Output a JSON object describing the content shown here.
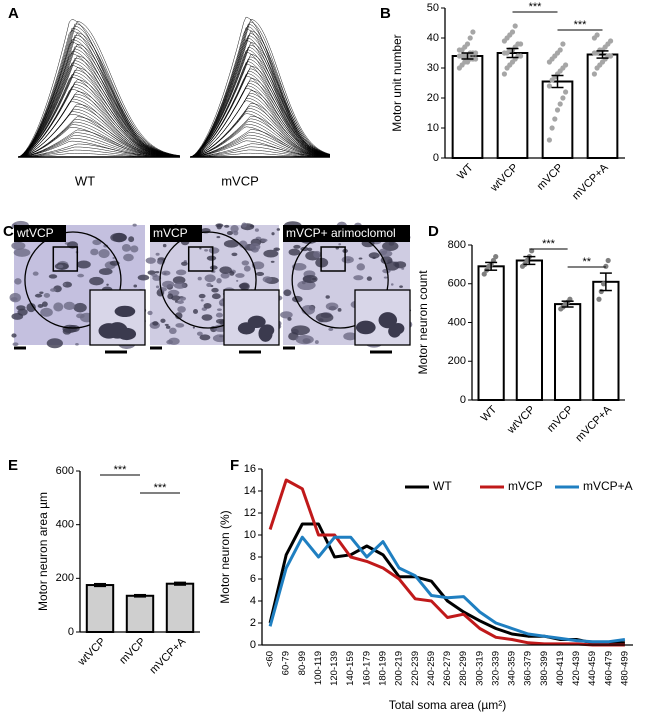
{
  "panels": [
    "A",
    "B",
    "C",
    "D",
    "E",
    "F"
  ],
  "traces": {
    "labels": [
      "WT",
      "mVCP"
    ]
  },
  "micrographs": {
    "labels": [
      "wtVCP",
      "mVCP",
      "mVCP+ arimoclomol"
    ]
  },
  "chart_data": [
    {
      "type": "bar",
      "ylabel": "Motor unit number",
      "categories": [
        "WT",
        "wtVCP",
        "mVCP",
        "mVCP+A"
      ],
      "values": [
        34,
        35,
        25.5,
        34.5
      ],
      "errors": [
        1,
        1.5,
        2,
        1.2
      ],
      "points": [
        [
          30,
          31,
          32,
          32,
          33,
          33,
          33,
          34,
          34,
          34,
          34,
          35,
          35,
          35,
          36,
          36,
          37,
          38,
          40,
          42
        ],
        [
          28,
          30,
          31,
          32,
          33,
          34,
          34,
          35,
          35,
          36,
          36,
          37,
          38,
          38,
          39,
          40,
          41,
          42,
          44
        ],
        [
          6,
          10,
          13,
          16,
          18,
          20,
          22,
          24,
          26,
          27,
          28,
          29,
          30,
          31,
          32,
          33,
          34,
          35,
          36,
          38
        ],
        [
          28,
          30,
          31,
          32,
          33,
          34,
          34,
          35,
          35,
          36,
          36,
          37,
          38,
          39,
          40,
          41
        ]
      ],
      "ylim": [
        0,
        50
      ],
      "yticks": [
        0,
        10,
        20,
        30,
        40,
        50
      ],
      "significance": [
        {
          "between": [
            "wtVCP",
            "mVCP"
          ],
          "label": "***"
        },
        {
          "between": [
            "mVCP",
            "mVCP+A"
          ],
          "label": "***"
        }
      ],
      "color": "#000000",
      "fill": "#ffffff",
      "point_color": "#a6a6a6"
    },
    {
      "type": "bar",
      "ylabel": "Motor neuron count",
      "categories": [
        "WT",
        "wtVCP",
        "mVCP",
        "mVCP+A"
      ],
      "values": [
        690,
        720,
        495,
        610
      ],
      "errors": [
        20,
        20,
        15,
        45
      ],
      "points": [
        [
          650,
          670,
          690,
          700,
          720,
          740
        ],
        [
          690,
          700,
          720,
          740,
          770
        ],
        [
          470,
          480,
          495,
          505,
          520
        ],
        [
          520,
          560,
          600,
          690,
          720
        ]
      ],
      "ylim": [
        0,
        800
      ],
      "yticks": [
        0,
        200,
        400,
        600,
        800
      ],
      "significance": [
        {
          "between": [
            "wtVCP",
            "mVCP"
          ],
          "label": "***"
        },
        {
          "between": [
            "mVCP",
            "mVCP+A"
          ],
          "label": "**"
        }
      ],
      "color": "#000000",
      "fill": "#ffffff",
      "point_color": "#7f7f7f"
    },
    {
      "type": "bar",
      "ylabel": "Motor neuron area µm",
      "categories": [
        "wtVCP",
        "mVCP",
        "mVCP+A"
      ],
      "values": [
        175,
        135,
        180
      ],
      "errors": [
        5,
        4,
        5
      ],
      "ylim": [
        0,
        600
      ],
      "yticks": [
        0,
        200,
        400,
        600
      ],
      "significance": [
        {
          "between": [
            "wtVCP",
            "mVCP"
          ],
          "label": "***"
        },
        {
          "between": [
            "mVCP",
            "mVCP+A"
          ],
          "label": "***"
        }
      ],
      "color": "#000000",
      "fill": "#cfcfcf"
    },
    {
      "type": "line",
      "xlabel": "Total soma area (µm²)",
      "ylabel": "Motor neuron (%)",
      "categories": [
        "<60",
        "60-79",
        "80-99",
        "100-119",
        "120-139",
        "140-159",
        "160-179",
        "180-199",
        "200-219",
        "220-239",
        "240-259",
        "260-279",
        "280-299",
        "300-319",
        "320-339",
        "340-359",
        "360-379",
        "380-399",
        "400-419",
        "420-439",
        "440-459",
        "460-479",
        "480-499"
      ],
      "series": [
        {
          "name": "WT",
          "color": "#000000",
          "values": [
            2,
            8.2,
            11,
            11,
            8,
            8.2,
            9,
            8.2,
            6.2,
            6.2,
            5.8,
            4,
            3,
            2.2,
            1.5,
            1,
            0.8,
            0.8,
            0.5,
            0.5,
            0.2,
            0.2,
            0.2
          ]
        },
        {
          "name": "mVCP",
          "color": "#c0191a",
          "values": [
            10.5,
            15,
            14.2,
            10,
            10,
            8,
            7.6,
            7,
            6,
            4.2,
            4,
            2.5,
            2.8,
            1.5,
            0.7,
            0.5,
            0.2,
            0.1,
            0.1,
            0.1,
            0,
            0,
            0
          ]
        },
        {
          "name": "mVCP+A",
          "color": "#1f7fc1",
          "values": [
            1.7,
            7,
            9.8,
            8,
            9.8,
            9.8,
            8,
            9.4,
            7,
            6.3,
            4.5,
            4.3,
            4.4,
            3,
            2,
            1.5,
            1,
            0.8,
            0.6,
            0.4,
            0.3,
            0.3,
            0.5
          ]
        }
      ],
      "ylim": [
        0,
        16
      ],
      "yticks": [
        0,
        2,
        4,
        6,
        8,
        10,
        12,
        14,
        16
      ],
      "legend": "top-right"
    }
  ]
}
